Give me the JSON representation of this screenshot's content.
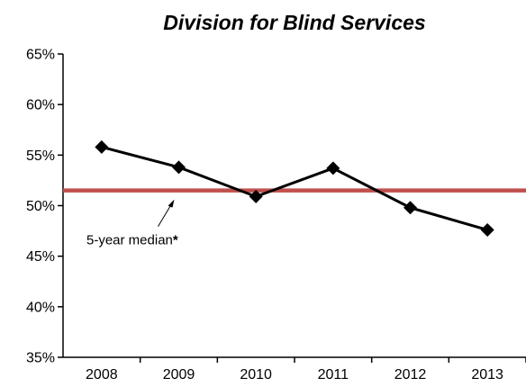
{
  "chart_data": {
    "type": "line",
    "title": "Division for Blind Services",
    "xlabel": "",
    "ylabel": "",
    "categories": [
      "2008",
      "2009",
      "2010",
      "2011",
      "2012",
      "2013"
    ],
    "series": [
      {
        "values": [
          55.8,
          53.8,
          50.9,
          53.7,
          49.8,
          47.6
        ],
        "color": "#000000",
        "marker": "diamond"
      }
    ],
    "reference_line": {
      "value": 51.5,
      "color": "#c0504d"
    },
    "ylim": [
      35,
      65
    ],
    "yticks": [
      35,
      40,
      45,
      50,
      55,
      60,
      65
    ],
    "ytick_labels": [
      "35%",
      "40%",
      "45%",
      "50%",
      "55%",
      "60%",
      "65%"
    ],
    "annotation": {
      "text": "5-year median",
      "suffix": "*",
      "points_to_year": "2009"
    },
    "grid": false,
    "legend": "none"
  }
}
